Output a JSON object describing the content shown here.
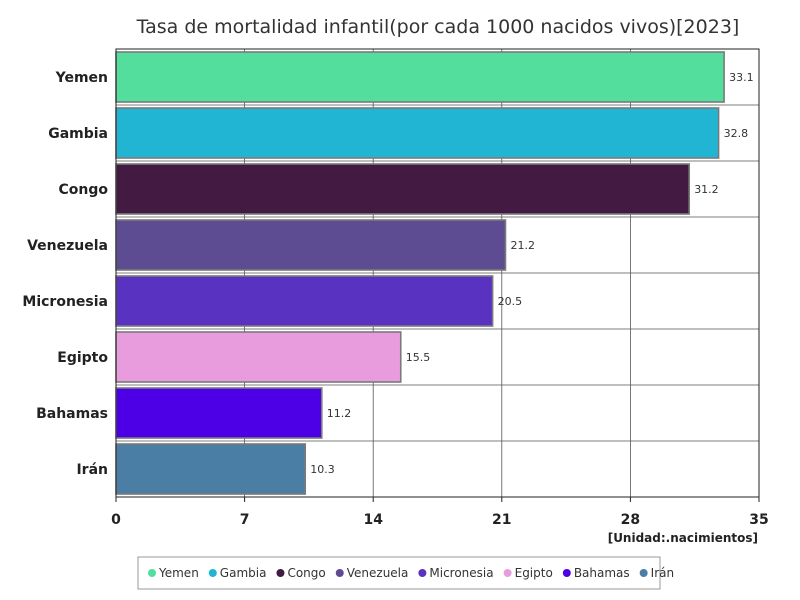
{
  "chart_data": {
    "type": "bar",
    "orientation": "horizontal",
    "title": "Tasa de mortalidad infantil(por cada 1000 nacidos vivos)[2023]",
    "unit_label": "[Unidad:.nacimientos]",
    "categories": [
      "Yemen",
      "Gambia",
      "Congo",
      "Venezuela",
      "Micronesia",
      "Egipto",
      "Bahamas",
      "Irán"
    ],
    "values": [
      33.1,
      32.8,
      31.2,
      21.2,
      20.5,
      15.5,
      11.2,
      10.3
    ],
    "value_labels": [
      "33.1",
      "32.8",
      "31.2",
      "21.2",
      "20.5",
      "15.5",
      "11.2",
      "10.3"
    ],
    "colors": [
      "#54de9e",
      "#21b5d3",
      "#421a42",
      "#5d4c92",
      "#5a32c2",
      "#e89cde",
      "#4d00e6",
      "#4a7ea5"
    ],
    "xlim": [
      0,
      35
    ],
    "x_ticks": [
      0,
      7,
      14,
      21,
      28,
      35
    ],
    "x_tick_labels": [
      "0",
      "7",
      "14",
      "21",
      "28",
      "35"
    ],
    "grid": true,
    "legend_position": "bottom"
  }
}
